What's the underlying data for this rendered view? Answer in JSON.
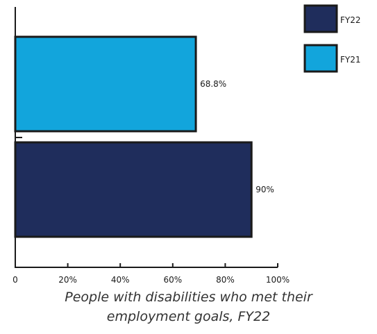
{
  "chart_data": {
    "type": "bar",
    "orientation": "horizontal",
    "categories": [
      "FY21",
      "FY22"
    ],
    "series": [
      {
        "name": "FY22",
        "values": [
          null,
          90
        ]
      },
      {
        "name": "FY21",
        "values": [
          68.8,
          null
        ]
      }
    ],
    "data_labels": [
      "68.8%",
      "90%"
    ],
    "xticks": [
      "0",
      "20%",
      "40%",
      "60%",
      "80%",
      "100%"
    ],
    "xlim": [
      0,
      100
    ],
    "grid": false,
    "legend_position": "top-right",
    "title": "",
    "caption_lines": [
      "People with disabilities who met their",
      "employment goals, FY22"
    ],
    "colors": {
      "FY22": "#1f2d5c",
      "FY21": "#12a5dc",
      "border": "#1a1a1a"
    }
  }
}
